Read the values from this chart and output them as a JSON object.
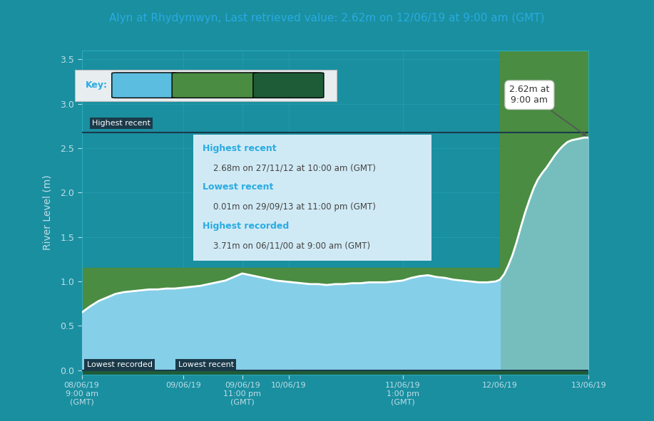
{
  "title": "Alyn at Rhydymwyn, Last retrieved value: 2.62m on 12/06/19 at 9:00 am (GMT)",
  "title_color": "#29abe2",
  "ylabel": "River Level (m)",
  "fig_bg_color": "#1a8fa0",
  "plot_bg_color": "#1a8fa0",
  "ylim": [
    -0.05,
    3.6
  ],
  "yticks": [
    0.0,
    0.5,
    1.0,
    1.5,
    2.0,
    2.5,
    3.0,
    3.5
  ],
  "high_level_color": "#6dc8e0",
  "typical_level_color": "#4a8c42",
  "low_level_color": "#1e5c38",
  "river_fill_color": "#85cfe8",
  "line_color": "#ffffff",
  "highest_recent_val": 2.68,
  "typical_band_top": 1.15,
  "xlim_min": 0,
  "xlim_max": 120,
  "flood_x": 99,
  "river_data_x": [
    0,
    2,
    4,
    6,
    8,
    10,
    12,
    14,
    16,
    18,
    20,
    22,
    24,
    26,
    28,
    30,
    32,
    34,
    36,
    38,
    40,
    42,
    44,
    46,
    48,
    50,
    52,
    54,
    56,
    58,
    60,
    62,
    64,
    66,
    68,
    70,
    72,
    74,
    76,
    78,
    80,
    82,
    84,
    86,
    88,
    90,
    92,
    94,
    96,
    98,
    99,
    100,
    101,
    102,
    103,
    104,
    105,
    106,
    107,
    108,
    109,
    110,
    111,
    112,
    113,
    114,
    115,
    116,
    117,
    118,
    119,
    120
  ],
  "river_data_y": [
    0.65,
    0.72,
    0.78,
    0.82,
    0.86,
    0.88,
    0.89,
    0.9,
    0.91,
    0.91,
    0.92,
    0.92,
    0.93,
    0.94,
    0.95,
    0.97,
    0.99,
    1.01,
    1.05,
    1.09,
    1.07,
    1.05,
    1.03,
    1.01,
    1.0,
    0.99,
    0.98,
    0.97,
    0.97,
    0.96,
    0.97,
    0.97,
    0.98,
    0.98,
    0.99,
    0.99,
    0.99,
    1.0,
    1.01,
    1.04,
    1.06,
    1.07,
    1.05,
    1.04,
    1.02,
    1.01,
    1.0,
    0.99,
    0.99,
    1.0,
    1.02,
    1.08,
    1.18,
    1.3,
    1.45,
    1.62,
    1.78,
    1.92,
    2.05,
    2.15,
    2.22,
    2.28,
    2.35,
    2.42,
    2.48,
    2.53,
    2.57,
    2.59,
    2.6,
    2.61,
    2.62,
    2.62
  ],
  "x_tick_positions": [
    0,
    24,
    38,
    49,
    76,
    99,
    120
  ],
  "x_tick_labels": [
    "08/06/19\n9:00 am\n(GMT)",
    "09/06/19",
    "09/06/19\n11:00 pm\n(GMT)",
    "10/06/19",
    "11/06/19\n1:00 pm\n(GMT)",
    "12/06/19",
    "13/06/19"
  ],
  "info_box_bg": "#d0eaf5",
  "info_header_color": "#29abe2",
  "info_text_color": "#444444",
  "callout_text": "2.62m at\n9:00 am",
  "key_bg_color": "#e8eef0",
  "key_high_color": "#5bbde0",
  "key_typical_color": "#4a8c42",
  "key_low_color": "#1e5c38",
  "label_box_color": "#1a3a4a",
  "grid_color": "#2aabba"
}
